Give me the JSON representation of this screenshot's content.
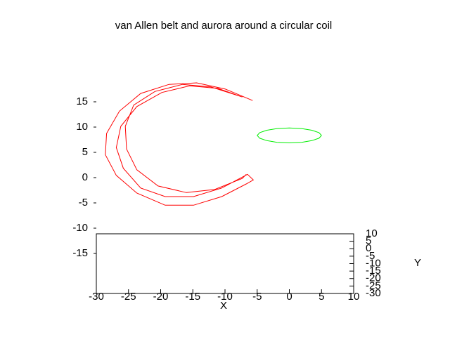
{
  "chart_data": {
    "type": "line3d",
    "title": "van Allen belt and aurora around a circular coil",
    "xlabel": "X",
    "ylabel": "Y",
    "xlim": [
      -30,
      10
    ],
    "ylim": [
      -30,
      10
    ],
    "zlim": [
      -15,
      15
    ],
    "xticks": [
      -30,
      -25,
      -20,
      -15,
      -10,
      -5,
      0,
      5,
      10
    ],
    "yticks": [
      10,
      5,
      0,
      -5,
      -10,
      -15,
      -20,
      -25,
      -30
    ],
    "zticks": [
      15,
      10,
      5,
      0,
      -5,
      -10,
      -15
    ],
    "series": [
      {
        "color": "#ff0000",
        "x": [
          -5.7,
          -10.0,
          -14.4,
          -18.7,
          -23.1,
          -26.4,
          -28.4,
          -28.6,
          -26.9,
          -23.7,
          -19.3,
          -14.9,
          -10.5,
          -6.7,
          -5.6,
          -6.5,
          -10.5,
          -14.9,
          -19.3,
          -23.1,
          -25.8,
          -26.9,
          -26.2,
          -23.7,
          -19.8,
          -15.5,
          -11.1,
          -7.3,
          -12.2,
          -16.6,
          -20.9,
          -24.2,
          -25.5,
          -25.3,
          -23.7,
          -20.4,
          -16.0,
          -11.6,
          -7.3,
          -6.7
        ],
        "y": [
          0,
          0,
          0,
          0,
          0,
          0,
          0,
          0,
          0,
          0,
          0,
          0,
          0,
          0,
          0,
          0,
          0,
          0,
          0,
          0,
          0,
          0,
          0,
          0,
          0,
          0,
          0,
          0,
          0,
          0,
          0,
          0,
          0,
          0,
          0,
          0,
          0,
          0,
          0,
          0
        ],
        "z": [
          18.2,
          20.5,
          21.7,
          21.4,
          19.6,
          16.1,
          11.7,
          7.5,
          3.4,
          -0.1,
          -2.5,
          -2.5,
          -0.8,
          1.7,
          2.5,
          3.6,
          0.9,
          -0.8,
          -0.8,
          0.9,
          4.8,
          8.9,
          13.1,
          17.0,
          19.8,
          21.1,
          20.6,
          18.9,
          20.9,
          21.4,
          20.0,
          17.3,
          13.1,
          8.6,
          4.5,
          1.3,
          0.0,
          0.6,
          2.8,
          3.6
        ]
      },
      {
        "color": "#00ee00",
        "x": [
          5,
          4.6,
          3.5,
          1.9,
          0,
          -1.9,
          -3.5,
          -4.6,
          -5,
          -4.6,
          -3.5,
          -1.9,
          0,
          1.9,
          3.5,
          4.6,
          5
        ],
        "y": [
          0,
          1.9,
          3.5,
          4.6,
          5,
          4.6,
          3.5,
          1.9,
          0,
          -1.9,
          -3.5,
          -4.6,
          -5,
          -4.6,
          -3.5,
          -1.9,
          0
        ],
        "z": [
          11.3,
          11.3,
          11.3,
          11.3,
          11.3,
          11.3,
          11.3,
          11.3,
          11.3,
          11.3,
          11.3,
          11.3,
          11.3,
          11.3,
          11.3,
          11.3,
          11.3
        ]
      }
    ]
  }
}
